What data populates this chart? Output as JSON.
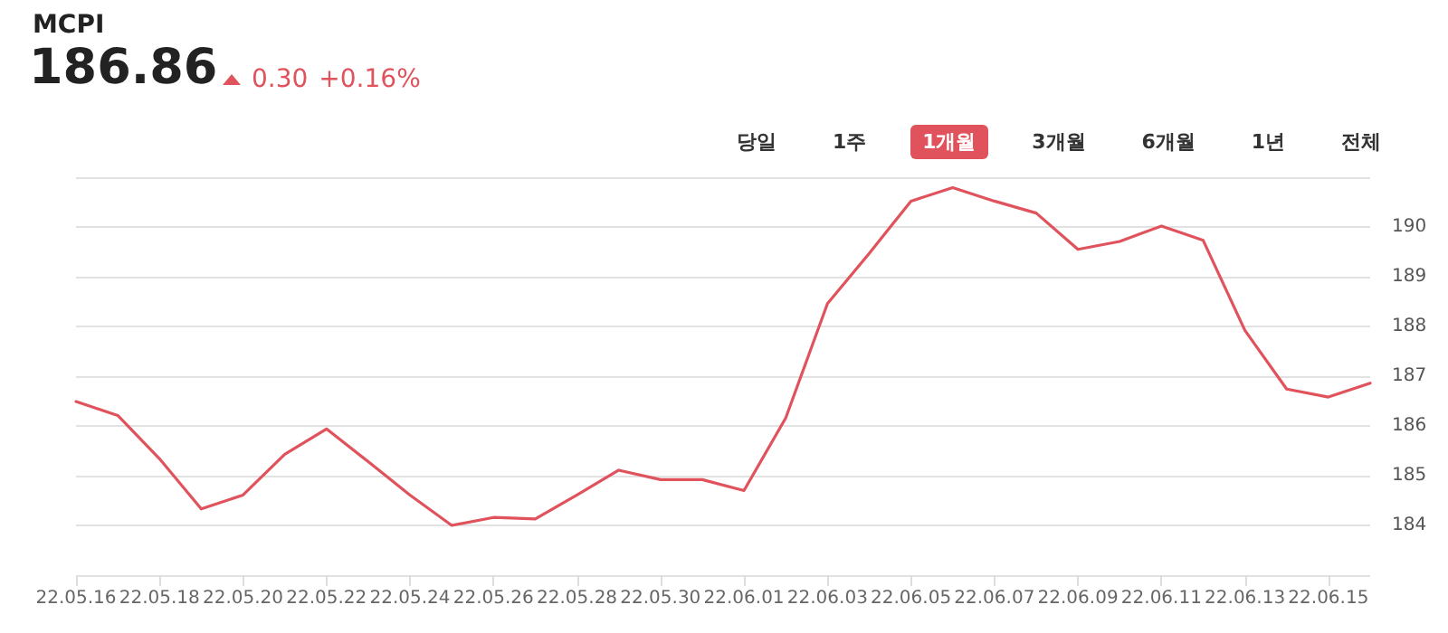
{
  "chart_data": {
    "type": "line",
    "title": "MCPI",
    "subtitle": "186.86",
    "annotations": [
      "0.30",
      "+0.16%",
      "당일",
      "1주",
      "1개월",
      "3개월",
      "6개월",
      "1년",
      "전체"
    ],
    "categories": [
      "22.05.16",
      null,
      "22.05.18",
      null,
      "22.05.20",
      null,
      "22.05.22",
      null,
      "22.05.24",
      null,
      "22.05.26",
      null,
      "22.05.28",
      null,
      "22.05.30",
      null,
      "22.06.01",
      null,
      "22.06.03",
      null,
      "22.06.05",
      null,
      "22.06.07",
      null,
      "22.06.09",
      null,
      "22.06.11",
      null,
      "22.06.13",
      null,
      "22.06.15",
      null
    ],
    "series": [
      {
        "color": "#e0525c",
        "values": [
          186.49,
          186.21,
          185.34,
          184.33,
          184.61,
          185.43,
          185.94,
          185.28,
          184.61,
          184.0,
          184.16,
          184.13,
          184.61,
          185.11,
          184.92,
          184.92,
          184.7,
          186.16,
          188.46,
          189.47,
          190.52,
          190.79,
          190.52,
          190.28,
          189.55,
          189.71,
          190.02,
          189.73,
          187.92,
          186.74,
          186.58,
          186.86
        ]
      }
    ],
    "ylim": [
      183,
      191
    ],
    "yticks": [
      {
        "value": 183,
        "label": null
      },
      184,
      185,
      186,
      187,
      188,
      189,
      190,
      {
        "value": 191,
        "label": null
      }
    ],
    "grid": "y",
    "marker": "none",
    "line_style": "solid"
  }
}
